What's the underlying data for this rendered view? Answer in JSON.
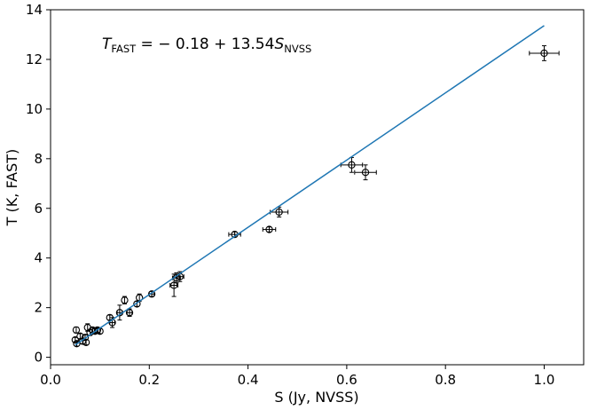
{
  "chart_data": {
    "type": "scatter",
    "title": "",
    "xlabel": "S (Jy, NVSS)",
    "ylabel": "T (K, FAST)",
    "xlim": [
      0.0,
      1.08
    ],
    "ylim": [
      -0.3,
      14.0
    ],
    "xticks": [
      0.0,
      0.2,
      0.4,
      0.6,
      0.8,
      1.0
    ],
    "xtick_labels": [
      "0.0",
      "0.2",
      "0.4",
      "0.6",
      "0.8",
      "1.0"
    ],
    "yticks": [
      0,
      2,
      4,
      6,
      8,
      10,
      12,
      14
    ],
    "ytick_labels": [
      "0",
      "2",
      "4",
      "6",
      "8",
      "10",
      "12",
      "14"
    ],
    "grid": false,
    "annotation": {
      "t": "T",
      "t_sub": "FAST",
      "middle": " = − 0.18 + 13.54",
      "s": "S",
      "s_sub": "NVSS"
    },
    "fit": {
      "intercept": -0.18,
      "slope": 13.54,
      "x_range": [
        0.05,
        1.0
      ],
      "color": "#1f77b4"
    },
    "series": [
      {
        "name": "sources",
        "marker": "open-circle",
        "color": "#000000",
        "points": [
          {
            "x": 0.05,
            "y": 0.7,
            "xerr": 0.0,
            "yerr": 0.1
          },
          {
            "x": 0.052,
            "y": 1.1,
            "xerr": 0.0,
            "yerr": 0.12
          },
          {
            "x": 0.053,
            "y": 0.55,
            "xerr": 0.0,
            "yerr": 0.1
          },
          {
            "x": 0.06,
            "y": 0.85,
            "xerr": 0.0,
            "yerr": 0.1
          },
          {
            "x": 0.065,
            "y": 0.65,
            "xerr": 0.0,
            "yerr": 0.1
          },
          {
            "x": 0.07,
            "y": 0.8,
            "xerr": 0.0,
            "yerr": 0.1
          },
          {
            "x": 0.072,
            "y": 0.6,
            "xerr": 0.0,
            "yerr": 0.1
          },
          {
            "x": 0.075,
            "y": 1.2,
            "xerr": 0.0,
            "yerr": 0.15
          },
          {
            "x": 0.08,
            "y": 1.0,
            "xerr": 0.0,
            "yerr": 0.12
          },
          {
            "x": 0.085,
            "y": 1.1,
            "xerr": 0.0,
            "yerr": 0.1
          },
          {
            "x": 0.09,
            "y": 1.05,
            "xerr": 0.0,
            "yerr": 0.1
          },
          {
            "x": 0.095,
            "y": 1.1,
            "xerr": 0.0,
            "yerr": 0.1
          },
          {
            "x": 0.1,
            "y": 1.05,
            "xerr": 0.0,
            "yerr": 0.1
          },
          {
            "x": 0.12,
            "y": 1.6,
            "xerr": 0.0,
            "yerr": 0.1
          },
          {
            "x": 0.125,
            "y": 1.4,
            "xerr": 0.005,
            "yerr": 0.2
          },
          {
            "x": 0.14,
            "y": 1.8,
            "xerr": 0.005,
            "yerr": 0.3
          },
          {
            "x": 0.15,
            "y": 2.3,
            "xerr": 0.0,
            "yerr": 0.15
          },
          {
            "x": 0.16,
            "y": 1.8,
            "xerr": 0.005,
            "yerr": 0.15
          },
          {
            "x": 0.175,
            "y": 2.15,
            "xerr": 0.0,
            "yerr": 0.1
          },
          {
            "x": 0.18,
            "y": 2.4,
            "xerr": 0.0,
            "yerr": 0.15
          },
          {
            "x": 0.205,
            "y": 2.55,
            "xerr": 0.005,
            "yerr": 0.1
          },
          {
            "x": 0.25,
            "y": 2.9,
            "xerr": 0.008,
            "yerr": 0.45
          },
          {
            "x": 0.255,
            "y": 3.2,
            "xerr": 0.008,
            "yerr": 0.2
          },
          {
            "x": 0.262,
            "y": 3.25,
            "xerr": 0.008,
            "yerr": 0.2
          },
          {
            "x": 0.373,
            "y": 4.95,
            "xerr": 0.012,
            "yerr": 0.1
          },
          {
            "x": 0.443,
            "y": 5.15,
            "xerr": 0.013,
            "yerr": 0.1
          },
          {
            "x": 0.463,
            "y": 5.85,
            "xerr": 0.018,
            "yerr": 0.2
          },
          {
            "x": 0.61,
            "y": 7.75,
            "xerr": 0.022,
            "yerr": 0.3
          },
          {
            "x": 0.638,
            "y": 7.45,
            "xerr": 0.022,
            "yerr": 0.3
          },
          {
            "x": 1.0,
            "y": 12.25,
            "xerr": 0.03,
            "yerr": 0.3
          }
        ]
      }
    ]
  }
}
